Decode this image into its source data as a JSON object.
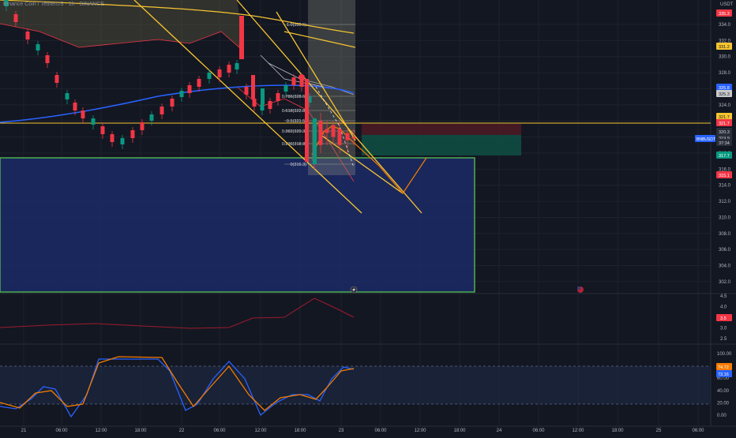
{
  "header": {
    "symbol_line": "Binance Coin / TetherUS · 1h · BINANCE",
    "currency": "USDT"
  },
  "colors": {
    "background": "#131722",
    "grid": "#1e222d",
    "up": "#089981",
    "down": "#f23645",
    "ma_blue": "#2962ff",
    "trendline": "#f7c531",
    "zone_fill": "#1c2a66",
    "zone_border": "#4caf50",
    "stoch_k": "#2962ff",
    "stoch_d": "#f57c00",
    "lower_indicator": "#9c1c2c",
    "fib_band": "#6b6443",
    "stop_zone": "#4a1a24",
    "target_zone": "#0f4d43"
  },
  "main_price_axis": {
    "ticks": [
      "334.0",
      "332.0",
      "330.0",
      "328.0",
      "326.0",
      "324.0",
      "322.0",
      "320.0",
      "318.0",
      "316.0",
      "314.0",
      "312.0",
      "310.0",
      "308.0",
      "306.0",
      "304.0",
      "302.0"
    ],
    "badges": [
      {
        "label": "335.3",
        "bg": "#f23645",
        "fg": "#ffffff"
      },
      {
        "label": "331.2",
        "bg": "#f7c531",
        "fg": "#131722"
      },
      {
        "label": "325.8",
        "bg": "#2962ff",
        "fg": "#ffffff"
      },
      {
        "label": "325.3",
        "bg": "#c9c9c9",
        "fg": "#131722"
      },
      {
        "label": "321.7",
        "bg": "#f7c531",
        "fg": "#131722"
      },
      {
        "label": "321.7",
        "bg": "#f23645",
        "fg": "#ffffff"
      },
      {
        "label": "320.3",
        "bg": "#2a2e39",
        "fg": "#d1d4dc"
      },
      {
        "label": "319.9",
        "bg": "#2a2e39",
        "fg": "#d1d4dc"
      },
      {
        "label": "37:34",
        "bg": "#2a2e39",
        "fg": "#d1d4dc"
      },
      {
        "label": "317.7",
        "bg": "#089981",
        "fg": "#ffffff"
      },
      {
        "label": "315.1",
        "bg": "#f23645",
        "fg": "#ffffff"
      }
    ],
    "symbol_tag": "BNBUSDT"
  },
  "fib_levels": [
    {
      "label": "1.0(333.5)"
    },
    {
      "label": "0.786(328.6)"
    },
    {
      "label": "0.618(322.8)"
    },
    {
      "label": "0.5(321.5)"
    },
    {
      "label": "0.382(320.3)"
    },
    {
      "label": "0.236(318.8)"
    },
    {
      "label": "0(316.3)"
    }
  ],
  "lower_indicator": {
    "ticks": [
      "4.5",
      "4.0",
      "3.5",
      "3.0",
      "2.5"
    ],
    "badge": "3.5"
  },
  "stoch": {
    "ticks": [
      "100.00",
      "80.00",
      "60.00",
      "40.00",
      "20.00",
      "0.00"
    ],
    "badges": [
      "74.72",
      "73.16"
    ]
  },
  "time_axis": [
    "21",
    "06:00",
    "12:00",
    "18:00",
    "22",
    "06:00",
    "12:00",
    "18:00",
    "23",
    "06:00",
    "12:00",
    "18:00",
    "24",
    "06:00",
    "12:00",
    "18:00",
    "25",
    "06:00"
  ],
  "icons": {
    "lightning": "lightning-icon",
    "flag": "us-flag-icon"
  }
}
